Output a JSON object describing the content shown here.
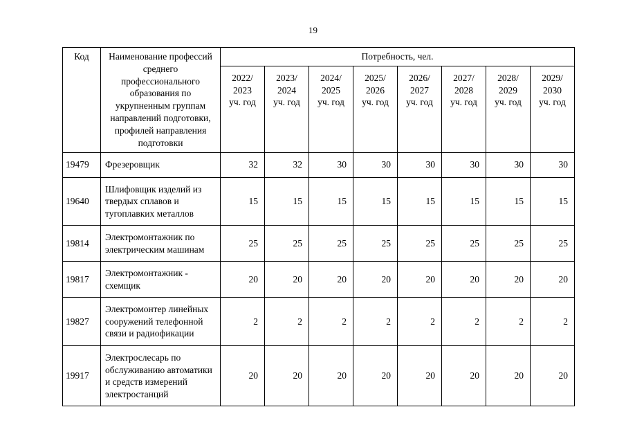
{
  "page": {
    "number": "19"
  },
  "table": {
    "col_code_header": "Код",
    "col_name_header": "Наименование профессий среднего профессионального образования по укрупненным группам направлений подготовки, профилей направления подготовки",
    "demand_header": "Потребность, чел.",
    "year_headers": [
      "2022/\n2023\nуч. год",
      "2023/\n2024\nуч. год",
      "2024/\n2025\nуч. год",
      "2025/\n2026\nуч. год",
      "2026/\n2027\nуч. год",
      "2027/\n2028\nуч. год",
      "2028/\n2029\nуч. год",
      "2029/\n2030\nуч. год"
    ],
    "rows": [
      {
        "code": "19479",
        "name": "Фрезеровщик",
        "values": [
          32,
          32,
          30,
          30,
          30,
          30,
          30,
          30
        ]
      },
      {
        "code": "19640",
        "name": "Шлифовщик изделий из твердых сплавов и тугоплавких металлов",
        "values": [
          15,
          15,
          15,
          15,
          15,
          15,
          15,
          15
        ]
      },
      {
        "code": "19814",
        "name": "Электромонтажник по электрическим машинам",
        "values": [
          25,
          25,
          25,
          25,
          25,
          25,
          25,
          25
        ]
      },
      {
        "code": "19817",
        "name": "Электромонтажник - схемщик",
        "values": [
          20,
          20,
          20,
          20,
          20,
          20,
          20,
          20
        ]
      },
      {
        "code": "19827",
        "name": "Электромонтер линейных сооружений телефонной связи и радиофикации",
        "values": [
          2,
          2,
          2,
          2,
          2,
          2,
          2,
          2
        ]
      },
      {
        "code": "19917",
        "name": "Электрослесарь по обслуживанию автоматики и средств измерений электростанций",
        "values": [
          20,
          20,
          20,
          20,
          20,
          20,
          20,
          20
        ]
      }
    ]
  }
}
